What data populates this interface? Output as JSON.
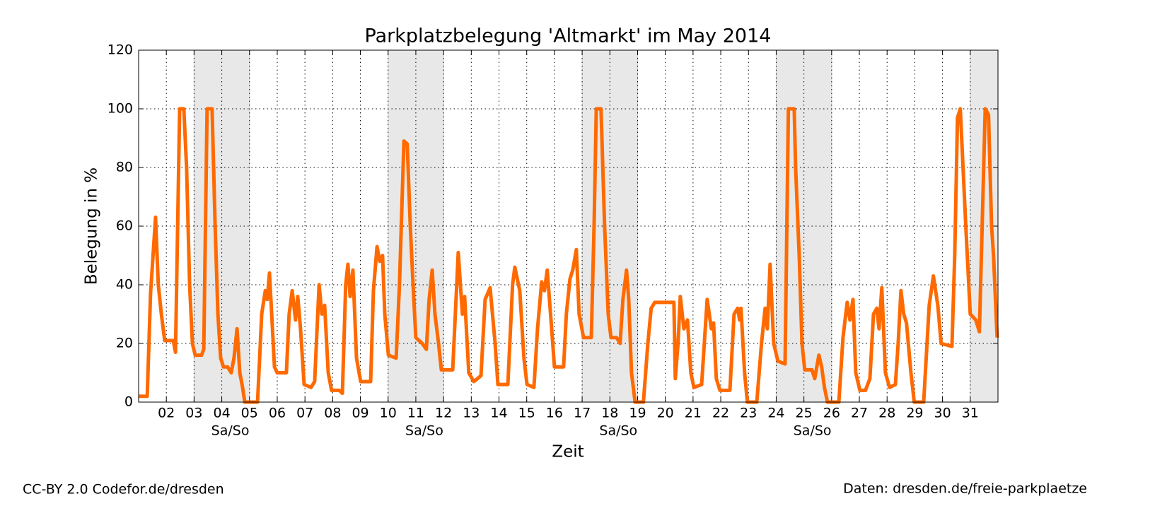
{
  "chart_data": {
    "type": "line",
    "title": "Parkplatzbelegung 'Altmarkt' im May 2014",
    "x_label": "Zeit",
    "y_label": "Belegung in %",
    "footer_left": "CC-BY 2.0 Codefor.de/dresden",
    "footer_right": "Daten: dresden.de/freie-parkplaetze",
    "xlim": [
      1,
      32
    ],
    "ylim": [
      0,
      120
    ],
    "xticks": [
      {
        "value": 2,
        "label": "02"
      },
      {
        "value": 3,
        "label": "03"
      },
      {
        "value": 4,
        "label": "04"
      },
      {
        "value": 5,
        "label": "05"
      },
      {
        "value": 6,
        "label": "06"
      },
      {
        "value": 7,
        "label": "07"
      },
      {
        "value": 8,
        "label": "08"
      },
      {
        "value": 9,
        "label": "09"
      },
      10,
      11,
      12,
      13,
      14,
      15,
      16,
      17,
      18,
      19,
      20,
      21,
      22,
      23,
      24,
      25,
      26,
      27,
      28,
      29,
      30,
      31
    ],
    "yticks": [
      0,
      20,
      40,
      60,
      80,
      100,
      120
    ],
    "grid": true,
    "shading": [
      {
        "start": 3,
        "end": 5,
        "label": "Sa/So"
      },
      {
        "start": 10,
        "end": 12,
        "label": "Sa/So"
      },
      {
        "start": 17,
        "end": 19,
        "label": "Sa/So"
      },
      {
        "start": 24,
        "end": 26,
        "label": "Sa/So"
      },
      {
        "start": 31,
        "end": 32
      }
    ],
    "series": [
      {
        "name": "Altmarkt",
        "color": "#ff6a00",
        "x": [
          1.0,
          1.31,
          1.43,
          1.61,
          1.71,
          1.82,
          1.94,
          2.25,
          2.33,
          2.48,
          2.63,
          2.73,
          2.84,
          2.94,
          3.04,
          3.27,
          3.35,
          3.47,
          3.65,
          3.76,
          3.86,
          3.96,
          4.06,
          4.21,
          4.34,
          4.44,
          4.55,
          4.65,
          4.75,
          4.83,
          5.29,
          5.44,
          5.57,
          5.64,
          5.72,
          5.8,
          5.9,
          6.0,
          6.33,
          6.43,
          6.54,
          6.66,
          6.74,
          6.84,
          6.97,
          7.22,
          7.35,
          7.51,
          7.61,
          7.71,
          7.84,
          7.96,
          8.24,
          8.35,
          8.47,
          8.55,
          8.63,
          8.73,
          8.86,
          9.01,
          9.37,
          9.47,
          9.6,
          9.7,
          9.8,
          9.88,
          10.01,
          10.29,
          10.41,
          10.57,
          10.69,
          10.8,
          10.9,
          11.0,
          11.23,
          11.38,
          11.48,
          11.59,
          11.69,
          11.82,
          11.92,
          12.33,
          12.53,
          12.68,
          12.76,
          12.91,
          13.09,
          13.35,
          13.5,
          13.68,
          13.86,
          13.96,
          14.32,
          14.49,
          14.57,
          14.75,
          14.9,
          15.01,
          15.26,
          15.39,
          15.54,
          15.64,
          15.74,
          15.9,
          16.0,
          16.33,
          16.43,
          16.56,
          16.66,
          16.79,
          16.89,
          17.05,
          17.33,
          17.43,
          17.51,
          17.68,
          17.81,
          17.94,
          18.04,
          18.24,
          18.37,
          18.47,
          18.6,
          18.68,
          18.78,
          18.91,
          19.21,
          19.37,
          19.49,
          19.62,
          20.31,
          20.36,
          20.46,
          20.54,
          20.67,
          20.8,
          20.92,
          21.03,
          21.31,
          21.51,
          21.66,
          21.74,
          21.84,
          21.97,
          22.33,
          22.48,
          22.61,
          22.68,
          22.73,
          22.86,
          22.96,
          23.3,
          23.47,
          23.6,
          23.68,
          23.78,
          23.91,
          24.06,
          24.32,
          24.44,
          24.65,
          24.7,
          24.83,
          24.93,
          25.03,
          25.29,
          25.39,
          25.54,
          25.64,
          25.74,
          25.85,
          26.26,
          26.41,
          26.56,
          26.66,
          26.77,
          26.87,
          27.02,
          27.22,
          27.38,
          27.51,
          27.63,
          27.71,
          27.81,
          27.94,
          28.09,
          28.3,
          28.4,
          28.5,
          28.6,
          28.7,
          28.86,
          28.98,
          29.32,
          29.52,
          29.67,
          29.83,
          29.95,
          30.34,
          30.44,
          30.54,
          30.64,
          30.74,
          30.84,
          31.0,
          31.2,
          31.33,
          31.43,
          31.54,
          31.66,
          31.77,
          31.84,
          31.97
        ],
        "values": [
          2,
          2,
          37,
          63,
          40,
          30,
          21,
          21,
          17,
          100,
          100,
          80,
          40,
          20,
          16,
          16,
          18,
          100,
          100,
          60,
          30,
          15,
          12,
          12,
          10,
          15,
          25,
          10,
          5,
          0,
          0,
          30,
          38,
          35,
          44,
          30,
          12,
          10,
          10,
          30,
          38,
          28,
          36,
          25,
          6,
          5,
          7,
          40,
          30,
          33,
          10,
          4,
          4,
          3,
          40,
          47,
          36,
          45,
          15,
          7,
          7,
          38,
          53,
          48,
          50,
          30,
          16,
          15,
          40,
          89,
          88,
          60,
          40,
          22,
          20,
          18,
          35,
          45,
          30,
          20,
          11,
          11,
          51,
          30,
          36,
          10,
          7,
          9,
          35,
          39,
          20,
          6,
          6,
          40,
          46,
          38,
          15,
          6,
          5,
          25,
          41,
          38,
          45,
          25,
          12,
          12,
          30,
          42,
          45,
          52,
          30,
          22,
          22,
          60,
          100,
          100,
          60,
          30,
          22,
          22,
          20,
          35,
          45,
          35,
          10,
          0,
          0,
          20,
          32,
          34,
          34,
          8,
          20,
          36,
          25,
          28,
          10,
          5,
          6,
          35,
          25,
          27,
          8,
          4,
          4,
          30,
          32,
          28,
          32,
          10,
          0,
          0,
          20,
          32,
          25,
          47,
          20,
          14,
          13,
          100,
          100,
          80,
          50,
          20,
          11,
          11,
          8,
          16,
          12,
          5,
          0,
          0,
          22,
          34,
          28,
          35,
          10,
          4,
          4,
          8,
          30,
          32,
          25,
          39,
          10,
          5,
          6,
          20,
          38,
          30,
          27,
          10,
          0,
          0,
          33,
          43,
          33,
          20,
          19,
          50,
          97,
          100,
          80,
          60,
          30,
          28,
          24,
          60,
          100,
          98,
          60,
          50,
          22
        ]
      }
    ]
  }
}
